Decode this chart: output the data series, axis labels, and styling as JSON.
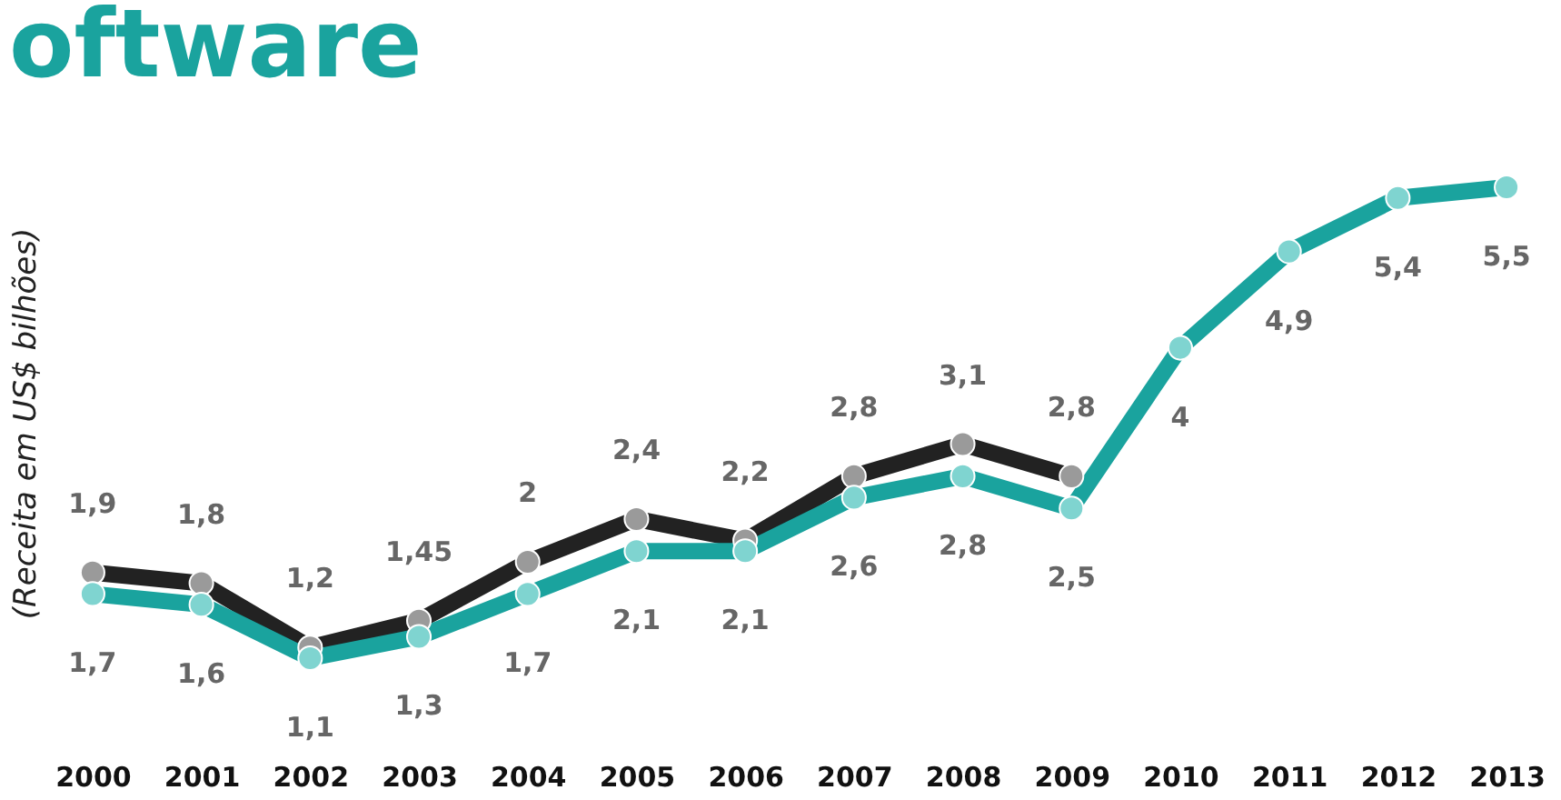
{
  "chart_data": {
    "type": "line",
    "title": "oftware",
    "ylabel": "(Receita em US$ bilhões)",
    "categories": [
      "2000",
      "2001",
      "2002",
      "2003",
      "2004",
      "2005",
      "2006",
      "2007",
      "2008",
      "2009",
      "2010",
      "2011",
      "2012",
      "2013"
    ],
    "series": [
      {
        "color": "#222222",
        "values": [
          1.9,
          1.8,
          1.2,
          1.45,
          2,
          2.4,
          2.2,
          2.8,
          3.1,
          2.8,
          null,
          null,
          null,
          null
        ],
        "value_labels": [
          "1,9",
          "1,8",
          "1,2",
          "1,45",
          "2",
          "2,4",
          "2,2",
          "2,8",
          "3,1",
          "2,8",
          null,
          null,
          null,
          null
        ]
      },
      {
        "color": "#1aa39e",
        "values": [
          1.7,
          1.6,
          1.1,
          1.3,
          1.7,
          2.1,
          2.1,
          2.6,
          2.8,
          2.5,
          4,
          4.9,
          5.4,
          5.5
        ],
        "value_labels": [
          "1,7",
          "1,6",
          "1,1",
          "1,3",
          "1,7",
          "2,1",
          "2,1",
          "2,6",
          "2,8",
          "2,5",
          "4",
          "4,9",
          "5,4",
          "5,5"
        ]
      }
    ],
    "marker": "circle",
    "line_style": "solid",
    "grid": false,
    "tick_labels": "x"
  }
}
